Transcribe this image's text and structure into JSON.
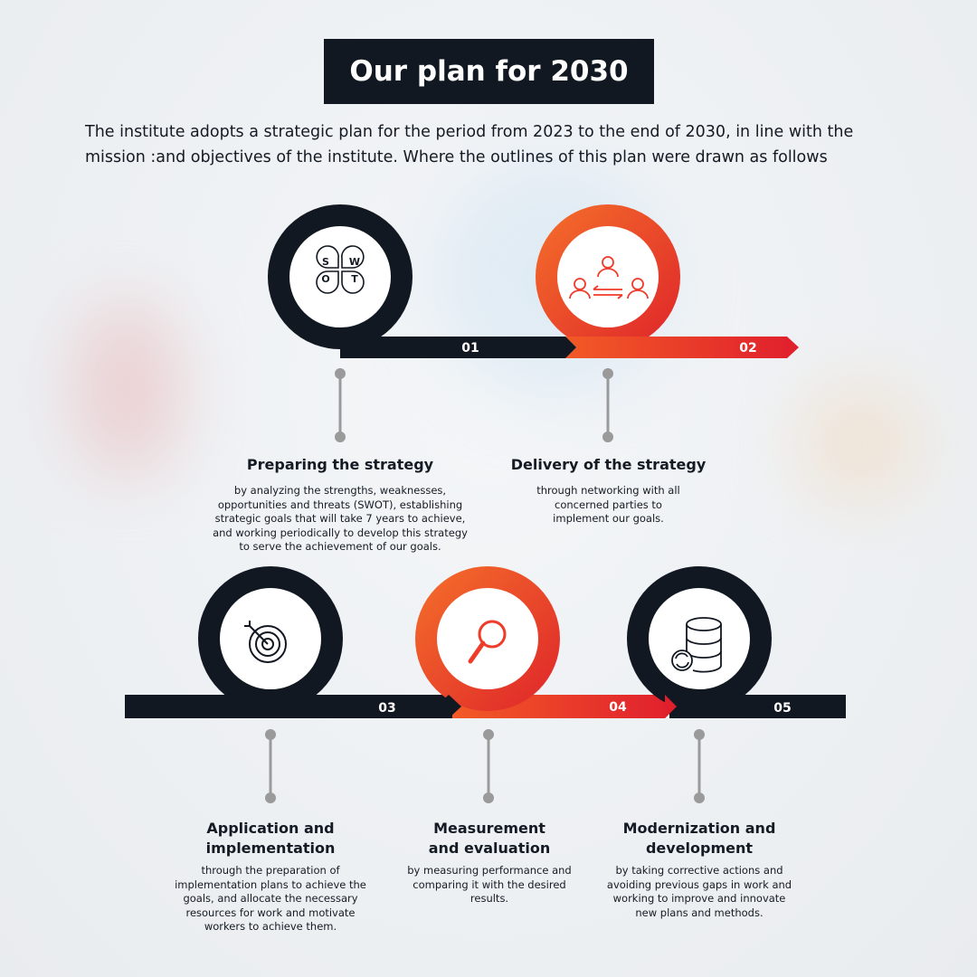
{
  "title": "Our plan for 2030",
  "intro": "The institute adopts a strategic plan for the period from 2023 to the end of 2030, in line with the mission :and objectives of the institute. Where the outlines of this plan were drawn as follows",
  "colors": {
    "dark": "#121821",
    "orange": "#f05a28",
    "red": "#e01f2d",
    "connector": "#9a9a9a"
  },
  "steps": [
    {
      "number": "01",
      "icon": "swot-icon",
      "swot": [
        "S",
        "W",
        "O",
        "T"
      ],
      "title": "Preparing the strategy",
      "description": "by analyzing the strengths, weaknesses, opportunities and threats (SWOT), establishing strategic goals that will take 7 years to achieve, and working periodically to develop this strategy to serve the achievement of our goals."
    },
    {
      "number": "02",
      "icon": "people-network-icon",
      "title": "Delivery of the strategy",
      "description": "through networking with all concerned parties to implement our goals."
    },
    {
      "number": "03",
      "icon": "target-icon",
      "title": "Application and implementation",
      "description": "through the preparation of implementation plans to achieve the goals, and allocate the necessary resources for work and motivate workers to achieve them."
    },
    {
      "number": "04",
      "icon": "magnifier-icon",
      "title": "Measurement and evaluation",
      "description": "by measuring performance and comparing it with the desired results."
    },
    {
      "number": "05",
      "icon": "database-sync-icon",
      "title": "Modernization and development",
      "description": "by taking corrective actions and avoiding previous gaps in work and working to improve and innovate new plans and methods."
    }
  ]
}
